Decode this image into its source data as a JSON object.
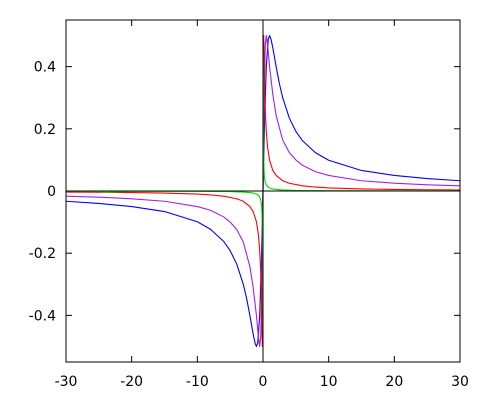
{
  "chart_data": {
    "type": "line",
    "title": "",
    "xlabel": "",
    "ylabel": "",
    "xlim": [
      -30,
      30
    ],
    "ylim": [
      -0.55,
      0.55
    ],
    "grid": false,
    "legend": "none",
    "zero_axes": true,
    "x_ticks": [
      -30,
      -20,
      -10,
      0,
      10,
      20,
      30
    ],
    "x_tick_labels": [
      "-30",
      "-20",
      "-10",
      "0",
      "10",
      "20",
      "30"
    ],
    "y_ticks": [
      -0.4,
      -0.2,
      0,
      0.2,
      0.4
    ],
    "y_tick_labels": [
      "-0.4",
      "-0.2",
      "0",
      "0.2",
      "0.4"
    ],
    "series": [
      {
        "color": "#0000ff",
        "x": [
          -30,
          -25,
          -20,
          -15,
          -10,
          -8,
          -6,
          -5,
          -4,
          -3,
          -2.5,
          -2,
          -1.5,
          -1.2,
          -1,
          -0.8,
          -0.5,
          -0.2,
          0,
          0.2,
          0.5,
          0.8,
          1,
          1.2,
          1.5,
          2,
          2.5,
          3,
          4,
          5,
          6,
          8,
          10,
          15,
          20,
          25,
          30
        ],
        "y": [
          -0.033,
          -0.04,
          -0.05,
          -0.066,
          -0.099,
          -0.123,
          -0.162,
          -0.192,
          -0.235,
          -0.3,
          -0.345,
          -0.4,
          -0.46,
          -0.49,
          -0.5,
          -0.488,
          -0.4,
          -0.192,
          0,
          0.192,
          0.4,
          0.488,
          0.5,
          0.49,
          0.46,
          0.4,
          0.345,
          0.3,
          0.235,
          0.192,
          0.162,
          0.123,
          0.099,
          0.066,
          0.05,
          0.04,
          0.033
        ]
      },
      {
        "color": "#a020f0",
        "x": [
          -30,
          -25,
          -20,
          -15,
          -10,
          -8,
          -6,
          -5,
          -4,
          -3,
          -2,
          -1.5,
          -1,
          -0.7,
          -0.5,
          -0.35,
          -0.2,
          -0.1,
          0,
          0.1,
          0.2,
          0.35,
          0.5,
          0.7,
          1,
          1.5,
          2,
          3,
          4,
          5,
          6,
          8,
          10,
          15,
          20,
          25,
          30
        ],
        "y": [
          -0.0167,
          -0.02,
          -0.025,
          -0.033,
          -0.05,
          -0.062,
          -0.083,
          -0.1,
          -0.124,
          -0.164,
          -0.243,
          -0.31,
          -0.4,
          -0.47,
          -0.5,
          -0.47,
          -0.34,
          -0.19,
          0,
          0.19,
          0.34,
          0.47,
          0.5,
          0.47,
          0.4,
          0.31,
          0.243,
          0.164,
          0.124,
          0.1,
          0.083,
          0.062,
          0.05,
          0.033,
          0.025,
          0.02,
          0.0167
        ]
      },
      {
        "color": "#ff0000",
        "x": [
          -30,
          -25,
          -20,
          -15,
          -10,
          -8,
          -6,
          -4,
          -3,
          -2,
          -1.5,
          -1,
          -0.7,
          -0.5,
          -0.35,
          -0.25,
          -0.15,
          -0.1,
          -0.05,
          0,
          0.05,
          0.1,
          0.15,
          0.25,
          0.35,
          0.5,
          0.7,
          1,
          1.5,
          2,
          3,
          4,
          6,
          8,
          10,
          15,
          20,
          25,
          30
        ],
        "y": [
          -0.0033,
          -0.004,
          -0.005,
          -0.0067,
          -0.01,
          -0.0125,
          -0.0167,
          -0.025,
          -0.033,
          -0.05,
          -0.066,
          -0.099,
          -0.14,
          -0.192,
          -0.26,
          -0.34,
          -0.46,
          -0.5,
          -0.4,
          0,
          0.4,
          0.5,
          0.46,
          0.34,
          0.26,
          0.192,
          0.14,
          0.099,
          0.066,
          0.05,
          0.033,
          0.025,
          0.0167,
          0.0125,
          0.01,
          0.0067,
          0.005,
          0.004,
          0.0033
        ]
      },
      {
        "color": "#00dd00",
        "x": [
          -30,
          -25,
          -24,
          -20,
          -10,
          -5,
          -3,
          -2,
          -1.5,
          -1,
          -0.7,
          -0.5,
          -0.3,
          -0.2,
          -0.1,
          -0.05,
          -0.02,
          0,
          0.02,
          0.05,
          0.1,
          0.2,
          0.3,
          0.5,
          0.7,
          1,
          1.5,
          2,
          3,
          5,
          10,
          20,
          30
        ],
        "y": [
          -0.0005,
          -0.0008,
          -0.004,
          -0.0008,
          -0.001,
          -0.002,
          -0.0035,
          -0.005,
          -0.0065,
          -0.01,
          -0.014,
          -0.02,
          -0.032,
          -0.05,
          -0.1,
          -0.2,
          -0.45,
          0,
          0.45,
          0.2,
          0.1,
          0.05,
          0.032,
          0.02,
          0.014,
          0.01,
          0.0065,
          0.005,
          0.0035,
          0.002,
          0.001,
          0.0008,
          0.0005
        ]
      }
    ]
  }
}
